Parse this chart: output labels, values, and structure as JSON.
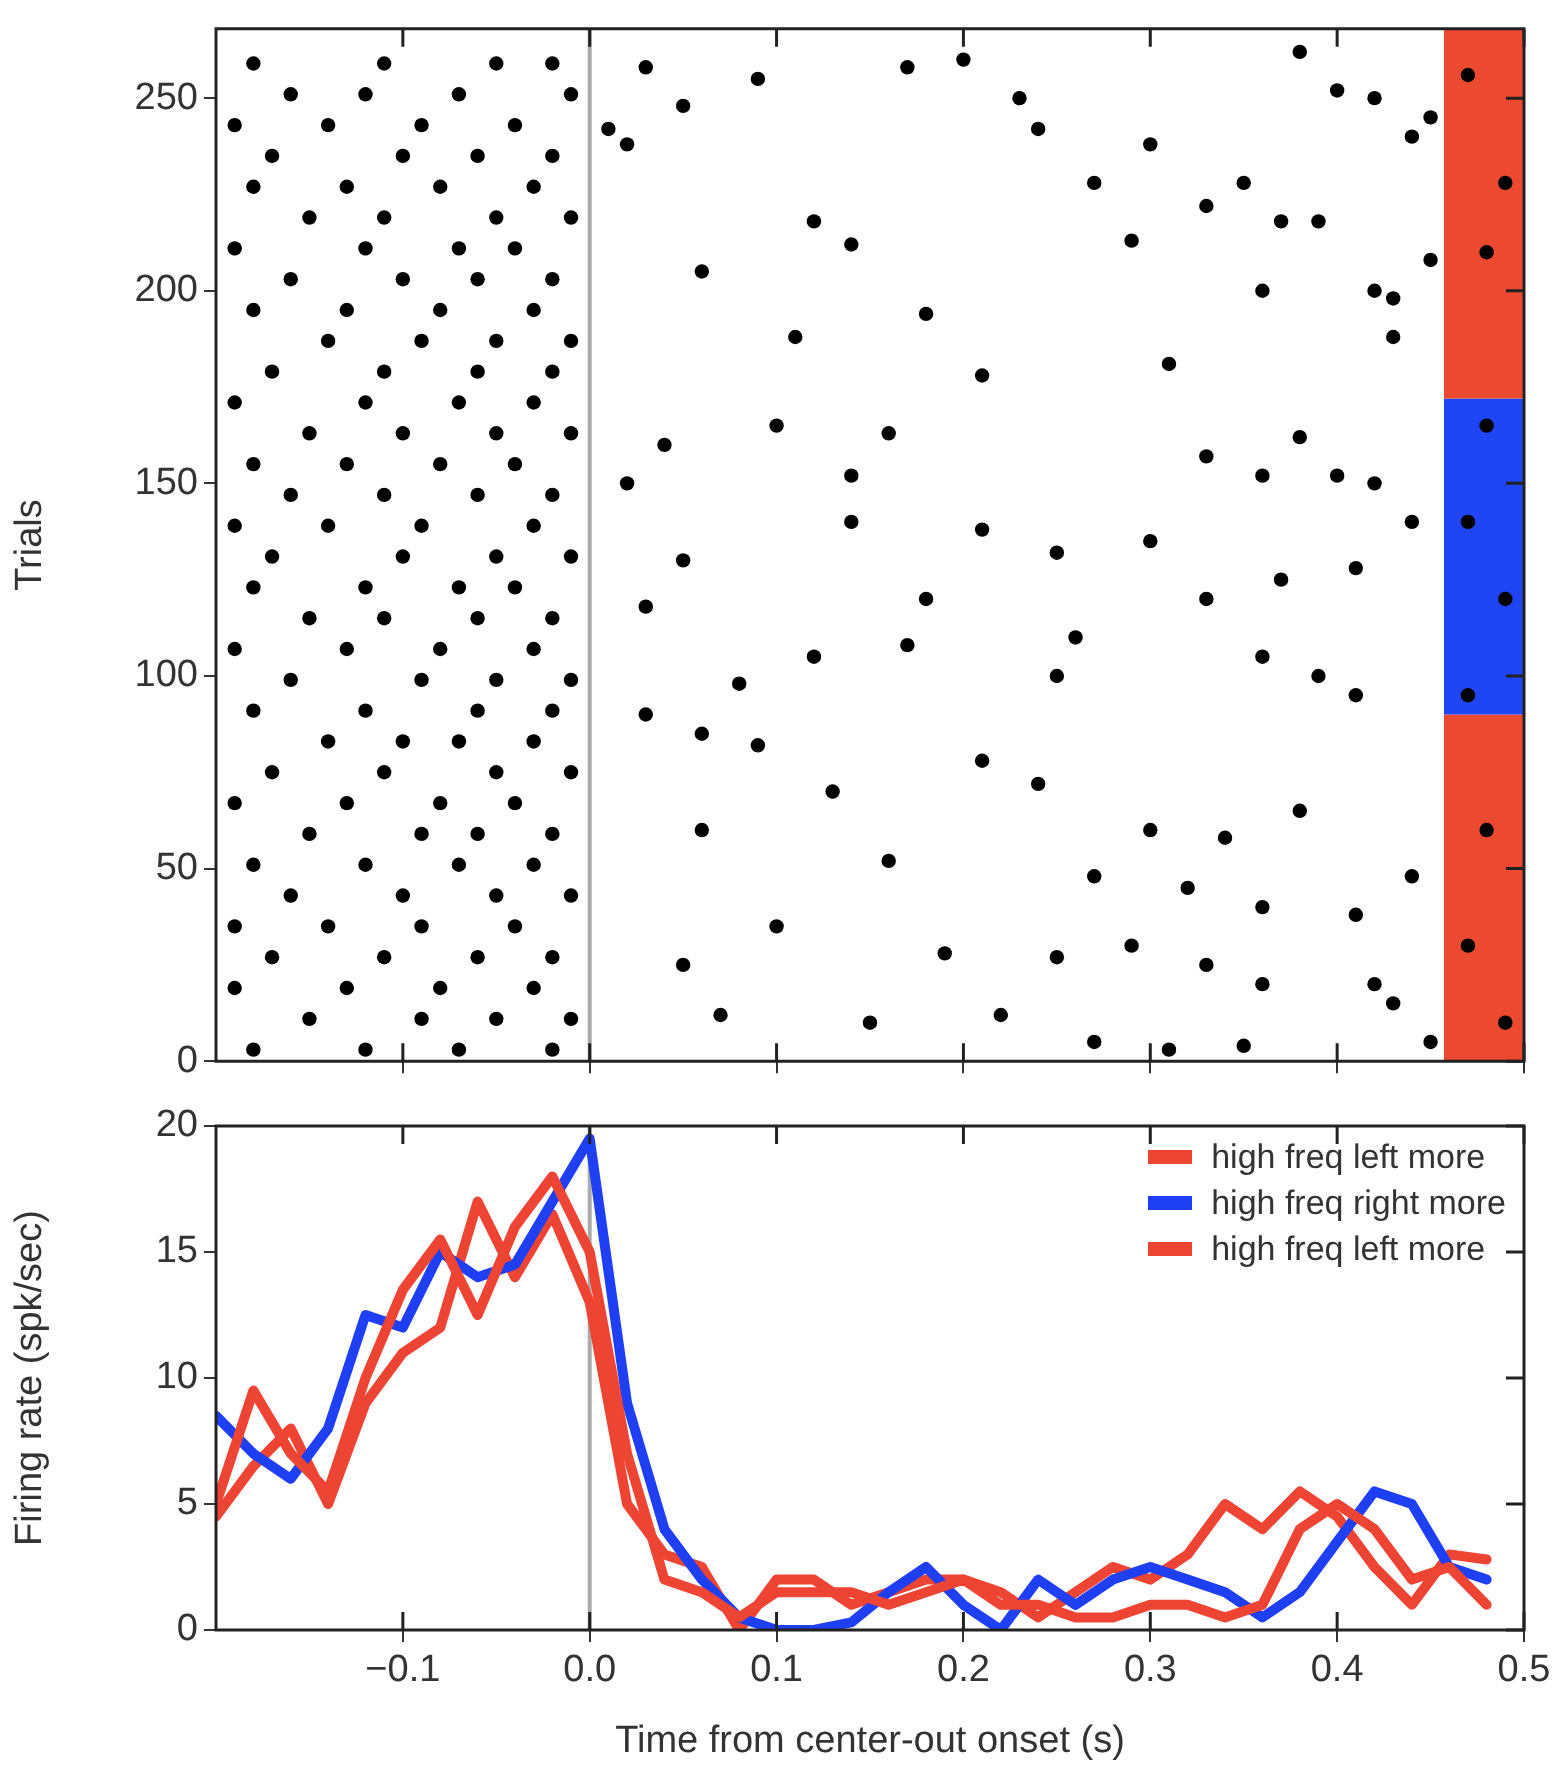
{
  "chart_data": [
    {
      "type": "scatter",
      "ylabel": "Trials",
      "xlim": [
        -0.2,
        0.5
      ],
      "ylim": [
        0,
        268
      ],
      "xticks": [
        -0.1,
        0,
        0.1,
        0.2,
        0.3,
        0.4,
        0.5
      ],
      "yticks": [
        0,
        50,
        100,
        150,
        200,
        250
      ],
      "tick_labels": "y",
      "marker": "circle",
      "ref_lines": [
        {
          "axis": "x",
          "value": 0,
          "color": "#aaaaaa"
        }
      ],
      "bands": [
        {
          "axis": "y",
          "from": 0,
          "to": 90,
          "color": "#ec4a30"
        },
        {
          "axis": "y",
          "from": 90,
          "to": 172,
          "color": "#1f45f5"
        },
        {
          "axis": "y",
          "from": 172,
          "to": 268,
          "color": "#ec4a30"
        }
      ],
      "series": [
        {
          "color": "#000000",
          "x": [
            -0.18,
            -0.12,
            -0.07,
            -0.02,
            -0.15,
            -0.09,
            -0.05,
            -0.01,
            -0.19,
            -0.13,
            -0.08,
            -0.03,
            -0.17,
            -0.11,
            -0.06,
            -0.02,
            -0.19,
            -0.14,
            -0.09,
            -0.04,
            -0.16,
            -0.1,
            -0.05,
            -0.01,
            -0.18,
            -0.12,
            -0.07,
            -0.03,
            -0.15,
            -0.09,
            -0.06,
            -0.02,
            -0.19,
            -0.13,
            -0.08,
            -0.04,
            -0.17,
            -0.11,
            -0.05,
            -0.01,
            -0.14,
            -0.1,
            -0.07,
            -0.03,
            -0.18,
            -0.12,
            -0.06,
            -0.02,
            -0.16,
            -0.09,
            -0.05,
            -0.01,
            -0.19,
            -0.13,
            -0.08,
            -0.03,
            -0.15,
            -0.11,
            -0.06,
            -0.02,
            -0.18,
            -0.12,
            -0.07,
            -0.04,
            -0.17,
            -0.1,
            -0.05,
            -0.01,
            -0.19,
            -0.14,
            -0.09,
            -0.03,
            -0.16,
            -0.11,
            -0.06,
            -0.02,
            -0.18,
            -0.13,
            -0.08,
            -0.04,
            -0.15,
            -0.1,
            -0.05,
            -0.01,
            -0.19,
            -0.12,
            -0.07,
            -0.03,
            -0.17,
            -0.11,
            -0.06,
            -0.02,
            -0.14,
            -0.09,
            -0.05,
            -0.01,
            -0.18,
            -0.13,
            -0.08,
            -0.03,
            -0.16,
            -0.1,
            -0.06,
            -0.02,
            -0.19,
            -0.12,
            -0.07,
            -0.04,
            -0.15,
            -0.11,
            -0.05,
            -0.01,
            -0.18,
            -0.13,
            -0.08,
            -0.03,
            -0.17,
            -0.1,
            -0.06,
            -0.02,
            -0.19,
            -0.14,
            -0.09,
            -0.04,
            -0.16,
            -0.12,
            -0.07,
            -0.01,
            -0.18,
            -0.11,
            -0.05,
            -0.02
          ],
          "values": [
            3,
            3,
            3,
            3,
            11,
            11,
            11,
            11,
            19,
            19,
            19,
            19,
            27,
            27,
            27,
            27,
            35,
            35,
            35,
            35,
            43,
            43,
            43,
            43,
            51,
            51,
            51,
            51,
            59,
            59,
            59,
            59,
            67,
            67,
            67,
            67,
            75,
            75,
            75,
            75,
            83,
            83,
            83,
            83,
            91,
            91,
            91,
            91,
            99,
            99,
            99,
            99,
            107,
            107,
            107,
            107,
            115,
            115,
            115,
            115,
            123,
            123,
            123,
            123,
            131,
            131,
            131,
            131,
            139,
            139,
            139,
            139,
            147,
            147,
            147,
            147,
            155,
            155,
            155,
            155,
            163,
            163,
            163,
            163,
            171,
            171,
            171,
            171,
            179,
            179,
            179,
            179,
            187,
            187,
            187,
            187,
            195,
            195,
            195,
            195,
            203,
            203,
            203,
            203,
            211,
            211,
            211,
            211,
            219,
            219,
            219,
            219,
            227,
            227,
            227,
            227,
            235,
            235,
            235,
            235,
            243,
            243,
            243,
            243,
            251,
            251,
            251,
            251,
            259,
            259,
            259,
            259
          ]
        },
        {
          "color": "#000000",
          "x": [
            0.03,
            0.05,
            0.09,
            0.17,
            0.2,
            0.23,
            0.24,
            0.3,
            0.35,
            0.38,
            0.4,
            0.42,
            0.44,
            0.45,
            0.01,
            0.02,
            0.12,
            0.06,
            0.14,
            0.27,
            0.29,
            0.33,
            0.37,
            0.39,
            0.36,
            0.42,
            0.45,
            0.11,
            0.18,
            0.21,
            0.31,
            0.43,
            0.43,
            0.16,
            0.1,
            0.14,
            0.04,
            0.02,
            0.36,
            0.38,
            0.33,
            0.4,
            0.42,
            0.3,
            0.25,
            0.18,
            0.21,
            0.14,
            0.05,
            0.03,
            0.17,
            0.25,
            0.33,
            0.37,
            0.41,
            0.44,
            0.08,
            0.12,
            0.03,
            0.06,
            0.26,
            0.36,
            0.39,
            0.41,
            0.09,
            0.13,
            0.21,
            0.24,
            0.3,
            0.34,
            0.38,
            0.06,
            0.16,
            0.27,
            0.32,
            0.36,
            0.41,
            0.44,
            0.1,
            0.05,
            0.19,
            0.25,
            0.29,
            0.33,
            0.36,
            0.42,
            0.07,
            0.15,
            0.22,
            0.27,
            0.31,
            0.35,
            0.43,
            0.45,
            0.47,
            0.49,
            0.48,
            0.47,
            0.49,
            0.48,
            0.47,
            0.49,
            0.48,
            0.47
          ],
          "values": [
            258,
            248,
            255,
            258,
            260,
            250,
            242,
            238,
            228,
            262,
            252,
            250,
            240,
            245,
            242,
            238,
            218,
            205,
            212,
            228,
            213,
            222,
            218,
            218,
            200,
            200,
            208,
            188,
            194,
            178,
            181,
            198,
            188,
            163,
            165,
            152,
            160,
            150,
            152,
            162,
            157,
            152,
            150,
            135,
            132,
            120,
            138,
            140,
            130,
            118,
            108,
            100,
            120,
            125,
            128,
            140,
            98,
            105,
            90,
            85,
            110,
            105,
            100,
            95,
            82,
            70,
            78,
            72,
            60,
            58,
            65,
            60,
            52,
            48,
            45,
            40,
            38,
            48,
            35,
            25,
            28,
            27,
            30,
            25,
            20,
            20,
            12,
            10,
            12,
            5,
            3,
            4,
            15,
            5,
            256,
            228,
            165,
            140,
            120,
            60,
            30,
            10,
            210,
            95
          ]
        }
      ]
    },
    {
      "type": "line",
      "xlabel": "Time from center-out onset (s)",
      "ylabel": "Firing rate (spk/sec)",
      "xlim": [
        -0.2,
        0.5
      ],
      "ylim": [
        0,
        20
      ],
      "xticks": [
        -0.1,
        {
          "value": 0,
          "label": "0.0"
        },
        0.1,
        0.2,
        0.3,
        0.4,
        0.5
      ],
      "yticks": [
        0,
        5,
        10,
        15,
        20
      ],
      "legend": "top right",
      "ref_lines": [
        {
          "axis": "x",
          "value": 0,
          "color": "#aaaaaa"
        }
      ],
      "x": [
        -0.2,
        -0.18,
        -0.16,
        -0.14,
        -0.12,
        -0.1,
        -0.08,
        -0.06,
        -0.04,
        -0.02,
        0,
        0.02,
        0.04,
        0.06,
        0.08,
        0.1,
        0.12,
        0.14,
        0.16,
        0.18,
        0.2,
        0.22,
        0.24,
        0.26,
        0.28,
        0.3,
        0.32,
        0.34,
        0.36,
        0.38,
        0.4,
        0.42,
        0.44,
        0.46,
        0.48
      ],
      "series": [
        {
          "name": "high freq left more",
          "color": "#ee4433",
          "values": [
            5,
            9.5,
            7,
            5.5,
            10,
            13.5,
            15.5,
            12.5,
            16,
            18,
            15,
            7,
            2,
            1.5,
            0.5,
            1.5,
            1.5,
            1.5,
            1,
            1.5,
            2,
            1,
            1,
            0.5,
            0.5,
            1,
            1,
            0.5,
            1,
            4,
            5,
            4,
            2,
            2.5,
            1
          ]
        },
        {
          "name": "high freq right more",
          "color": "#1f3ff5",
          "values": [
            8.5,
            7,
            6,
            8,
            12.5,
            12,
            15,
            14,
            14.5,
            17,
            19.5,
            9,
            4,
            2,
            0.5,
            0,
            0,
            0.3,
            1.5,
            2.5,
            1,
            0,
            2,
            1,
            2,
            2.5,
            2,
            1.5,
            0.5,
            1.5,
            3.5,
            5.5,
            5,
            2.5,
            2
          ]
        },
        {
          "name": "high freq left more",
          "color": "#ee4433",
          "values": [
            4.5,
            6.5,
            8,
            5,
            9,
            11,
            12,
            17,
            14,
            16.5,
            13,
            5,
            3,
            2.5,
            0,
            2,
            2,
            1,
            1.5,
            2,
            2,
            1.5,
            0.5,
            1.5,
            2.5,
            2,
            3,
            5,
            4,
            5.5,
            4.5,
            2.5,
            1,
            3,
            2.8
          ]
        }
      ]
    }
  ]
}
